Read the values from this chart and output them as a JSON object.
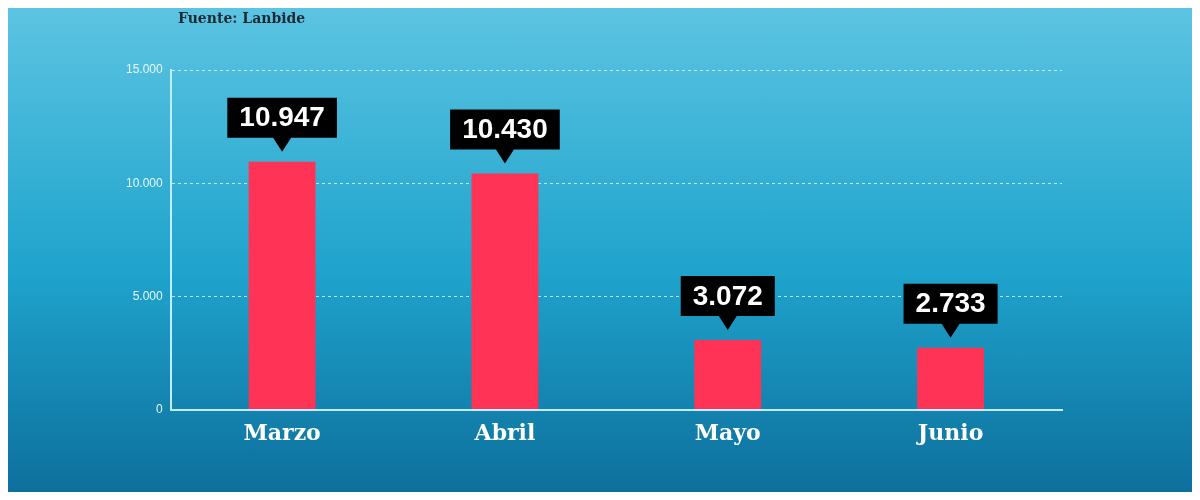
{
  "chart_data": {
    "type": "bar",
    "annotations": [
      "Fuente: Lanbide"
    ],
    "categories": [
      "Marzo",
      "Abril",
      "Mayo",
      "Junio"
    ],
    "values": [
      10947,
      10430,
      3072,
      2733
    ],
    "value_labels": [
      "10.947",
      "10.430",
      "3.072",
      "2.733"
    ],
    "color": "#ff3355",
    "ylim": [
      0,
      15000
    ],
    "yticks": [
      {
        "value": 0,
        "label": "0"
      },
      {
        "value": 5000,
        "label": "5.000"
      },
      {
        "value": 10000,
        "label": "10.000"
      },
      {
        "value": 15000,
        "label": "15.000"
      }
    ],
    "grid": "y",
    "legend": false
  }
}
